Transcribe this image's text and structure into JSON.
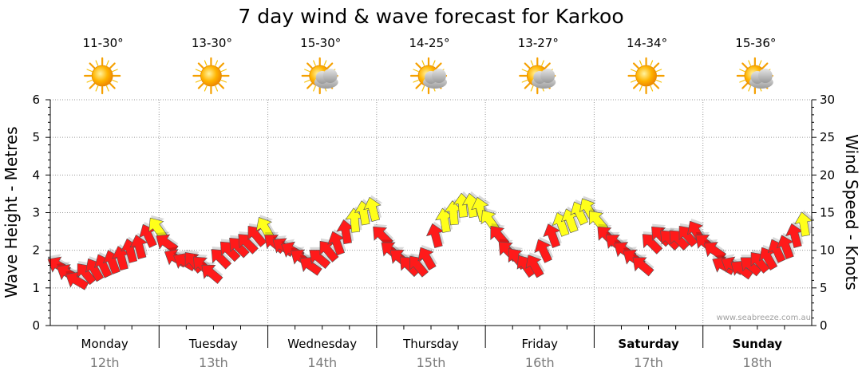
{
  "chart_data": {
    "type": "scatter",
    "title": "7 day wind & wave forecast for Karkoo",
    "ylabel_left": "Wave Height - Metres",
    "ylabel_right": "Wind Speed - Knots",
    "ylim_left": [
      0,
      6
    ],
    "ylim_right": [
      0,
      30
    ],
    "yticks_left": [
      "0",
      "1",
      "2",
      "3",
      "4",
      "5",
      "6"
    ],
    "yticks_right": [
      "0",
      "5",
      "10",
      "15",
      "20",
      "25",
      "30"
    ],
    "grid": true,
    "watermark": "www.seabreeze.com.au",
    "days": [
      {
        "name": "Monday",
        "date": "12th",
        "temp": "11-30°",
        "weather": "sunny-icon",
        "bold": false
      },
      {
        "name": "Tuesday",
        "date": "13th",
        "temp": "13-30°",
        "weather": "sunny-icon",
        "bold": false
      },
      {
        "name": "Wednesday",
        "date": "14th",
        "temp": "15-30°",
        "weather": "partly-cloudy-icon",
        "bold": false
      },
      {
        "name": "Thursday",
        "date": "15th",
        "temp": "14-25°",
        "weather": "partly-cloudy-icon",
        "bold": false
      },
      {
        "name": "Friday",
        "date": "16th",
        "temp": "13-27°",
        "weather": "partly-cloudy-icon",
        "bold": false
      },
      {
        "name": "Saturday",
        "date": "17th",
        "temp": "14-34°",
        "weather": "sunny-icon",
        "bold": true
      },
      {
        "name": "Sunday",
        "date": "18th",
        "temp": "15-36°",
        "weather": "partly-cloudy-icon",
        "bold": true
      }
    ],
    "wind_speed_knots": [
      8,
      7,
      6,
      7,
      7.5,
      8,
      8.5,
      9,
      10,
      10.5,
      12,
      13,
      11,
      9,
      8.5,
      8.5,
      8,
      7,
      9,
      10,
      10.5,
      11,
      12,
      13,
      11,
      10.5,
      10,
      9,
      8,
      9,
      10,
      11,
      12.5,
      14,
      15,
      15.5,
      12,
      10,
      9,
      8,
      8,
      9,
      12,
      14,
      15,
      16,
      16,
      15.5,
      14,
      12,
      10,
      9,
      8,
      8,
      10,
      12,
      13.5,
      14,
      15,
      15.5,
      14,
      12,
      11,
      10,
      9,
      8,
      11,
      12,
      11.5,
      11.5,
      12,
      12.5,
      11,
      10,
      8,
      8,
      7.5,
      8,
      8.5,
      9,
      10,
      10.5,
      12,
      13.5
    ],
    "wind_direction_deg": [
      300,
      300,
      300,
      320,
      330,
      335,
      340,
      345,
      345,
      345,
      335,
      325,
      305,
      300,
      300,
      320,
      315,
      310,
      315,
      315,
      315,
      315,
      320,
      330,
      310,
      305,
      300,
      305,
      305,
      310,
      320,
      340,
      350,
      355,
      350,
      345,
      315,
      310,
      310,
      315,
      320,
      330,
      345,
      350,
      355,
      355,
      350,
      345,
      325,
      320,
      315,
      320,
      325,
      330,
      335,
      340,
      340,
      340,
      335,
      330,
      320,
      315,
      310,
      305,
      305,
      310,
      315,
      315,
      315,
      315,
      320,
      330,
      310,
      305,
      300,
      300,
      305,
      310,
      320,
      330,
      335,
      340,
      345,
      350
    ]
  }
}
